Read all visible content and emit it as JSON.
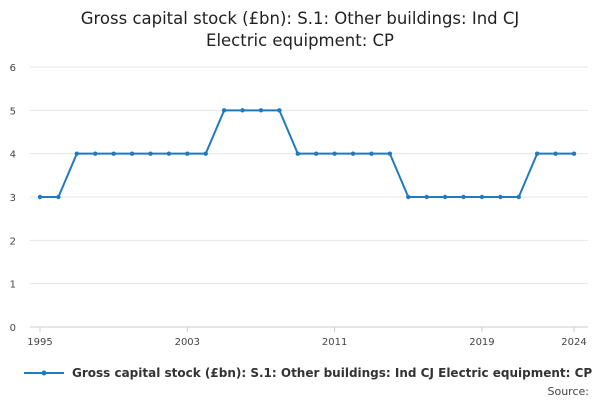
{
  "chart_data": {
    "type": "line",
    "title_lines": [
      "Gross capital stock (£bn): S.1: Other buildings: Ind CJ",
      "Electric equipment: CP"
    ],
    "x": [
      1995,
      1996,
      1997,
      1998,
      1999,
      2000,
      2001,
      2002,
      2003,
      2004,
      2005,
      2006,
      2007,
      2008,
      2009,
      2010,
      2011,
      2012,
      2013,
      2014,
      2015,
      2016,
      2017,
      2018,
      2019,
      2020,
      2021,
      2022,
      2023,
      2024
    ],
    "series": [
      {
        "name": "Gross capital stock (£bn): S.1: Other buildings: Ind CJ Electric equipment: CP",
        "values": [
          3,
          3,
          4,
          4,
          4,
          4,
          4,
          4,
          4,
          4,
          5,
          5,
          5,
          5,
          4,
          4,
          4,
          4,
          4,
          4,
          3,
          3,
          3,
          3,
          3,
          3,
          3,
          4,
          4,
          4
        ]
      }
    ],
    "x_ticks": [
      1995,
      2003,
      2011,
      2019,
      2024
    ],
    "x_tick_labels": [
      "1995",
      "2003",
      "2011",
      "2019",
      "2024"
    ],
    "y_ticks": [
      0,
      1,
      2,
      3,
      4,
      5,
      6
    ],
    "y_tick_labels": [
      "0",
      "1",
      "2",
      "3",
      "4",
      "5",
      "6"
    ],
    "xlim": [
      1995,
      2024
    ],
    "ylim": [
      0,
      6
    ],
    "grid": true,
    "legend_position": "bottom",
    "line_color": "#1f7bbf",
    "grid_color": "#e6e6e6",
    "axis_color": "#cccccc",
    "source_label": "Source:"
  }
}
